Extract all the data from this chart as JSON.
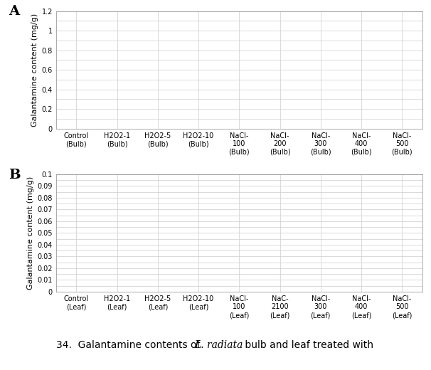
{
  "panel_A": {
    "label": "A",
    "categories": [
      "Control\n(Bulb)",
      "H2O2-1\n(Bulb)",
      "H2O2-5\n(Bulb)",
      "H2O2-10\n(Bulb)",
      "NaCl-\n100\n(Bulb)",
      "NaCl-\n200\n(Bulb)",
      "NaCl-\n300\n(Bulb)",
      "NaCl-\n400\n(Bulb)",
      "NaCl-\n500\n(Bulb)"
    ],
    "ylabel": "Galantamine content (mg/g)",
    "ylim": [
      0,
      1.2
    ],
    "yticks": [
      0,
      0.2,
      0.4,
      0.6,
      0.8,
      1.0,
      1.2
    ],
    "yticklabels": [
      "0",
      "0.2",
      "0.4",
      "0.6",
      "0.8",
      "1",
      "1.2"
    ]
  },
  "panel_B": {
    "label": "B",
    "categories": [
      "Control\n(Leaf)",
      "H2O2-1\n(Leaf)",
      "H2O2-5\n(Leaf)",
      "H2O2-10\n(Leaf)",
      "NaCl-\n100\n(Leaf)",
      "NaC-\n2100\n(Leaf)",
      "NaCl-\n300\n(Leaf)",
      "NaCl-\n400\n(Leaf)",
      "NaCl-\n500\n(Leaf)"
    ],
    "ylabel": "Galantamine content (mg/g)",
    "ylim": [
      0,
      0.1
    ],
    "yticks": [
      0,
      0.01,
      0.02,
      0.03,
      0.04,
      0.05,
      0.06,
      0.07,
      0.08,
      0.09,
      0.1
    ],
    "yticklabels": [
      "0",
      "0.01",
      "0.02",
      "0.03",
      "0.04",
      "0.05",
      "0.06",
      "0.07",
      "0.08",
      "0.09",
      "0.1"
    ]
  },
  "caption": "34.  Galantamine contents of ",
  "caption_italic": "L. radiata",
  "caption_rest": " bulb and leaf treated with",
  "grid_color": "#cccccc",
  "bg_color": "#ffffff",
  "label_color": "#000000",
  "title_fontsize": 12,
  "tick_fontsize": 7,
  "ylabel_fontsize": 8,
  "caption_fontsize": 10
}
